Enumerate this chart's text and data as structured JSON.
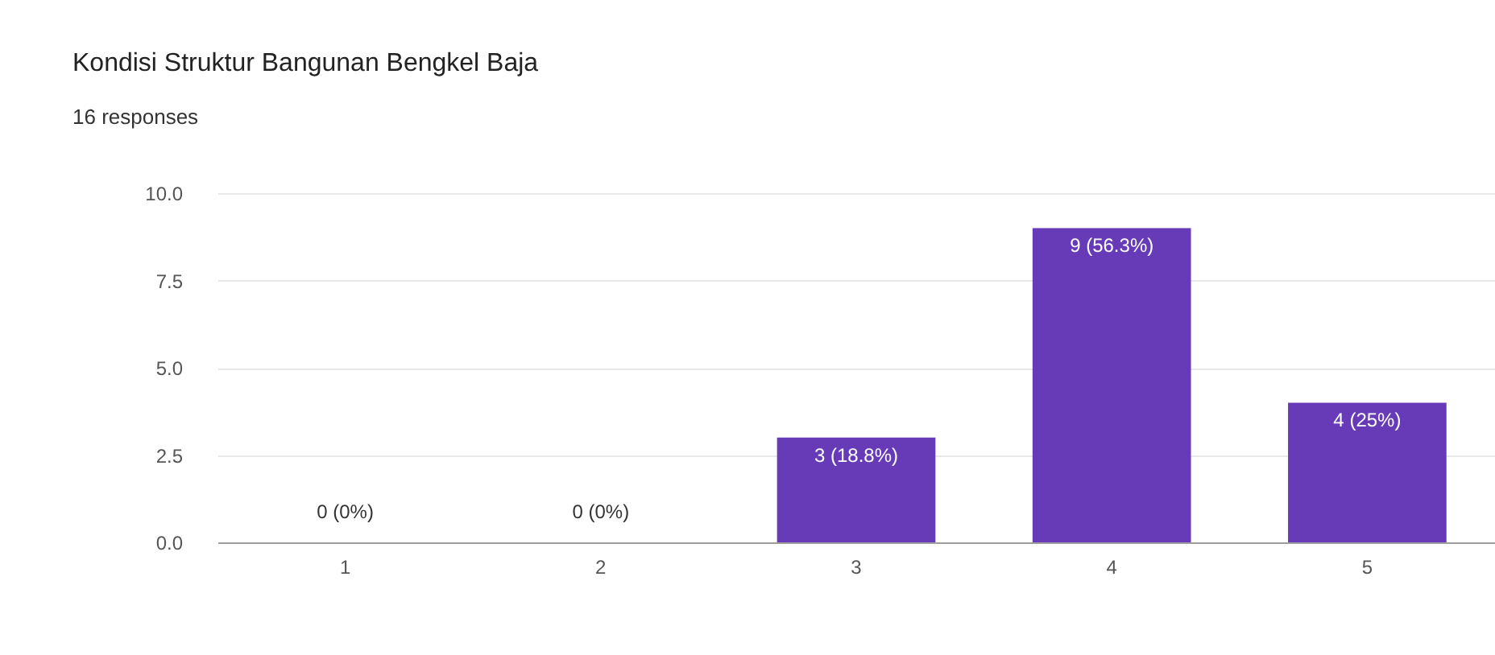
{
  "chart_data": {
    "type": "bar",
    "title": "Kondisi Struktur Bangunan Bengkel Baja",
    "subtitle": "16 responses",
    "categories": [
      "1",
      "2",
      "3",
      "4",
      "5"
    ],
    "values": [
      0,
      0,
      3,
      9,
      4
    ],
    "value_labels": [
      "0 (0%)",
      "0 (0%)",
      "3 (18.8%)",
      "9 (56.3%)",
      "4 (25%)"
    ],
    "color": "#673ab7",
    "ylim": [
      0,
      10
    ],
    "yticks": [
      {
        "value": 0,
        "label": "0.0"
      },
      2.5,
      {
        "value": 5,
        "label": "5.0"
      },
      7.5,
      {
        "value": 10,
        "label": "10.0"
      }
    ],
    "grid": "y"
  }
}
